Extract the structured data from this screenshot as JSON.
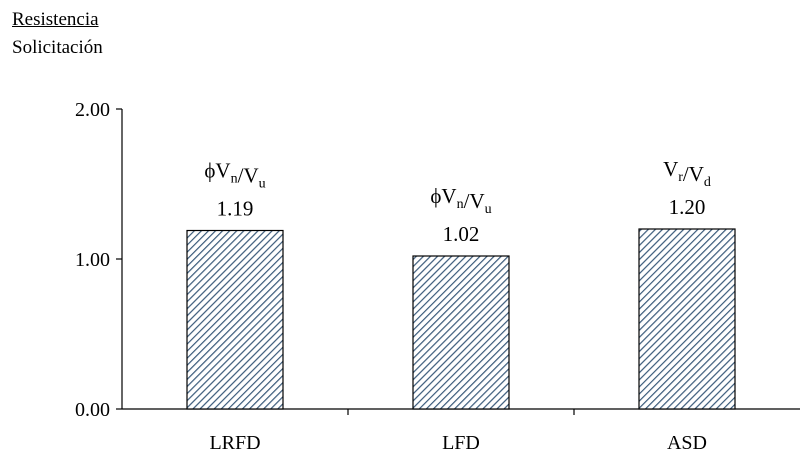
{
  "chart_data": {
    "type": "bar",
    "ylabel": {
      "numerator": "Resistencia",
      "denominator": "Solicitación"
    },
    "categories": [
      "LRFD",
      "LFD",
      "ASD"
    ],
    "values": [
      1.19,
      1.02,
      1.2
    ],
    "value_labels": [
      "1.19",
      "1.02",
      "1.20"
    ],
    "ratio_labels": [
      {
        "prefix": "ϕ",
        "a": "V",
        "a_sub": "n",
        "b": "V",
        "b_sub": "u"
      },
      {
        "prefix": "ϕ",
        "a": "V",
        "a_sub": "n",
        "b": "V",
        "b_sub": "u"
      },
      {
        "prefix": "",
        "a": "V",
        "a_sub": "r",
        "b": "V",
        "b_sub": "d"
      }
    ],
    "ylim": [
      0,
      2
    ],
    "yticks": [
      0,
      1,
      2
    ],
    "ytick_labels": [
      "0.00",
      "1.00",
      "2.00"
    ],
    "grid": false,
    "legend": "none",
    "bar_fill": "hatched",
    "bar_hatch_color": "#3a5a7a"
  }
}
